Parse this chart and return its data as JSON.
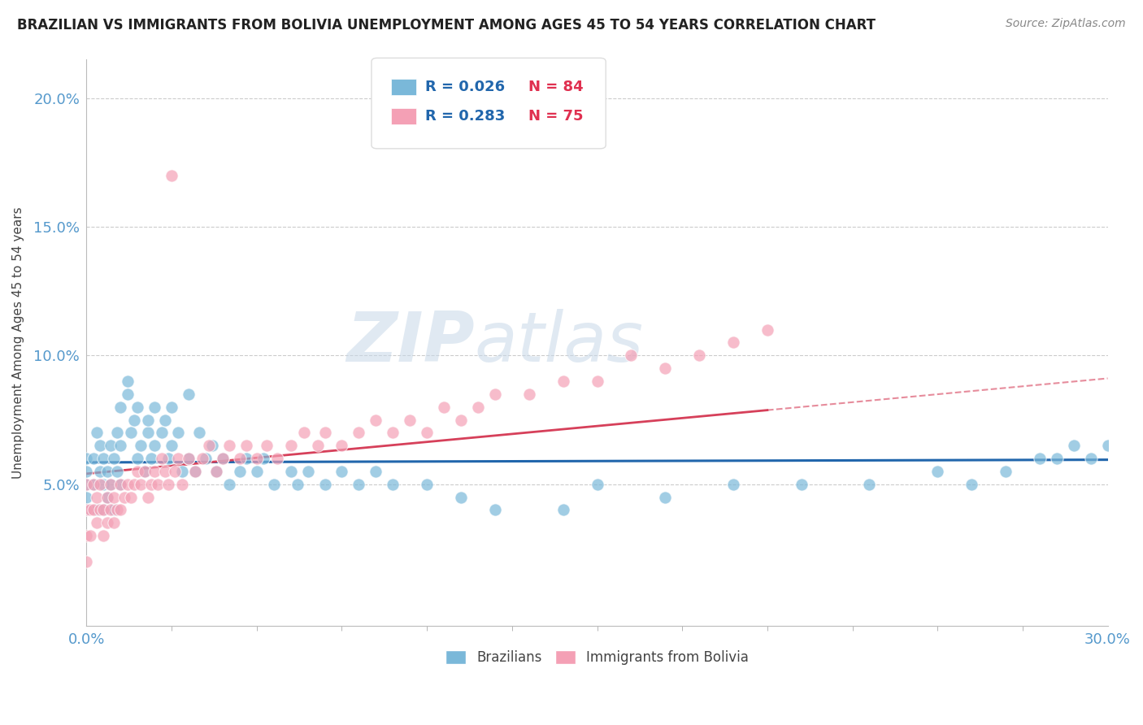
{
  "title": "BRAZILIAN VS IMMIGRANTS FROM BOLIVIA UNEMPLOYMENT AMONG AGES 45 TO 54 YEARS CORRELATION CHART",
  "source": "Source: ZipAtlas.com",
  "ylabel": "Unemployment Among Ages 45 to 54 years",
  "xlim": [
    0.0,
    0.3
  ],
  "ylim": [
    -0.005,
    0.215
  ],
  "blue_color": "#7ab8d9",
  "pink_color": "#f4a0b5",
  "trend_blue_color": "#2166ac",
  "trend_pink_color": "#d6405a",
  "legend_R_color": "#2166ac",
  "legend_N_color": "#e03050",
  "legend_blue_R": "R = 0.026",
  "legend_blue_N": "N = 84",
  "legend_pink_R": "R = 0.283",
  "legend_pink_N": "N = 75",
  "grid_color": "#cccccc",
  "axis_color": "#5599cc",
  "background_color": "#ffffff",
  "brazil_x": [
    0.0,
    0.0,
    0.0,
    0.0,
    0.0,
    0.002,
    0.002,
    0.003,
    0.003,
    0.004,
    0.004,
    0.005,
    0.005,
    0.005,
    0.006,
    0.006,
    0.007,
    0.007,
    0.008,
    0.008,
    0.009,
    0.009,
    0.01,
    0.01,
    0.01,
    0.012,
    0.012,
    0.013,
    0.014,
    0.015,
    0.015,
    0.016,
    0.017,
    0.018,
    0.018,
    0.019,
    0.02,
    0.02,
    0.022,
    0.023,
    0.024,
    0.025,
    0.025,
    0.027,
    0.028,
    0.03,
    0.03,
    0.032,
    0.033,
    0.035,
    0.037,
    0.038,
    0.04,
    0.042,
    0.045,
    0.047,
    0.05,
    0.052,
    0.055,
    0.06,
    0.062,
    0.065,
    0.07,
    0.075,
    0.08,
    0.085,
    0.09,
    0.1,
    0.11,
    0.12,
    0.14,
    0.15,
    0.17,
    0.19,
    0.21,
    0.23,
    0.25,
    0.26,
    0.27,
    0.28,
    0.285,
    0.29,
    0.295,
    0.3
  ],
  "brazil_y": [
    0.05,
    0.06,
    0.04,
    0.055,
    0.045,
    0.05,
    0.06,
    0.07,
    0.04,
    0.055,
    0.065,
    0.05,
    0.04,
    0.06,
    0.055,
    0.045,
    0.065,
    0.05,
    0.06,
    0.04,
    0.07,
    0.055,
    0.08,
    0.065,
    0.05,
    0.085,
    0.09,
    0.07,
    0.075,
    0.06,
    0.08,
    0.065,
    0.055,
    0.07,
    0.075,
    0.06,
    0.08,
    0.065,
    0.07,
    0.075,
    0.06,
    0.08,
    0.065,
    0.07,
    0.055,
    0.085,
    0.06,
    0.055,
    0.07,
    0.06,
    0.065,
    0.055,
    0.06,
    0.05,
    0.055,
    0.06,
    0.055,
    0.06,
    0.05,
    0.055,
    0.05,
    0.055,
    0.05,
    0.055,
    0.05,
    0.055,
    0.05,
    0.05,
    0.045,
    0.04,
    0.04,
    0.05,
    0.045,
    0.05,
    0.05,
    0.05,
    0.055,
    0.05,
    0.055,
    0.06,
    0.06,
    0.065,
    0.06,
    0.065
  ],
  "bolivia_x": [
    0.0,
    0.0,
    0.0,
    0.0,
    0.001,
    0.001,
    0.002,
    0.002,
    0.003,
    0.003,
    0.004,
    0.004,
    0.005,
    0.005,
    0.006,
    0.006,
    0.007,
    0.007,
    0.008,
    0.008,
    0.009,
    0.01,
    0.01,
    0.011,
    0.012,
    0.013,
    0.014,
    0.015,
    0.016,
    0.017,
    0.018,
    0.019,
    0.02,
    0.021,
    0.022,
    0.023,
    0.024,
    0.025,
    0.026,
    0.027,
    0.028,
    0.03,
    0.032,
    0.034,
    0.036,
    0.038,
    0.04,
    0.042,
    0.045,
    0.047,
    0.05,
    0.053,
    0.056,
    0.06,
    0.064,
    0.068,
    0.07,
    0.075,
    0.08,
    0.085,
    0.09,
    0.095,
    0.1,
    0.105,
    0.11,
    0.115,
    0.12,
    0.13,
    0.14,
    0.15,
    0.16,
    0.17,
    0.18,
    0.19,
    0.2
  ],
  "bolivia_y": [
    0.03,
    0.04,
    0.02,
    0.05,
    0.04,
    0.03,
    0.05,
    0.04,
    0.045,
    0.035,
    0.04,
    0.05,
    0.03,
    0.04,
    0.045,
    0.035,
    0.04,
    0.05,
    0.035,
    0.045,
    0.04,
    0.05,
    0.04,
    0.045,
    0.05,
    0.045,
    0.05,
    0.055,
    0.05,
    0.055,
    0.045,
    0.05,
    0.055,
    0.05,
    0.06,
    0.055,
    0.05,
    0.17,
    0.055,
    0.06,
    0.05,
    0.06,
    0.055,
    0.06,
    0.065,
    0.055,
    0.06,
    0.065,
    0.06,
    0.065,
    0.06,
    0.065,
    0.06,
    0.065,
    0.07,
    0.065,
    0.07,
    0.065,
    0.07,
    0.075,
    0.07,
    0.075,
    0.07,
    0.08,
    0.075,
    0.08,
    0.085,
    0.085,
    0.09,
    0.09,
    0.1,
    0.095,
    0.1,
    0.105,
    0.11
  ]
}
